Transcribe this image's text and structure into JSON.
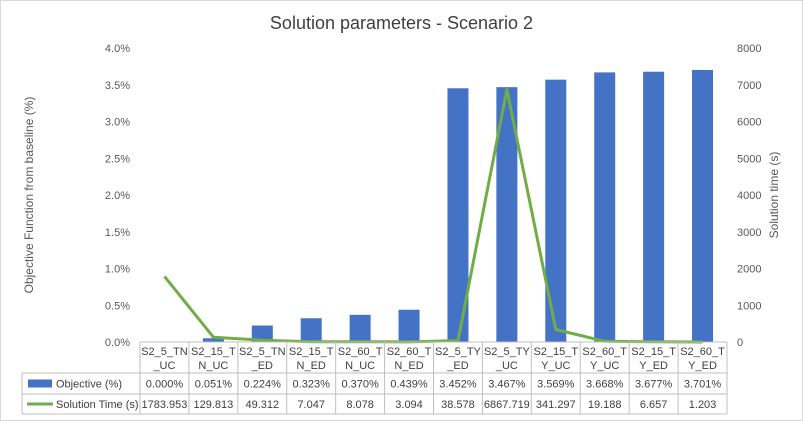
{
  "chart_data": {
    "type": "bar",
    "title": "Solution parameters - Scenario 2",
    "categories": [
      "S2_5_TN_UC",
      "S2_15_TN_UC",
      "S2_5_TN_ED",
      "S2_15_TN_ED",
      "S2_60_TN_UC",
      "S2_60_TN_ED",
      "S2_5_TY_ED",
      "S2_5_TY_UC",
      "S2_15_TY_UC",
      "S2_60_TY_UC",
      "S2_15_TY_ED",
      "S2_60_TY_ED"
    ],
    "category_lines": [
      [
        "S2_5_TN",
        "_UC"
      ],
      [
        "S2_15_T",
        "N_UC"
      ],
      [
        "S2_5_TN",
        "_ED"
      ],
      [
        "S2_15_T",
        "N_ED"
      ],
      [
        "S2_60_T",
        "N_UC"
      ],
      [
        "S2_60_T",
        "N_ED"
      ],
      [
        "S2_5_TY",
        "_ED"
      ],
      [
        "S2_5_TY",
        "_UC"
      ],
      [
        "S2_15_T",
        "Y_UC"
      ],
      [
        "S2_60_T",
        "Y_UC"
      ],
      [
        "S2_15_T",
        "Y_ED"
      ],
      [
        "S2_60_T",
        "Y_ED"
      ]
    ],
    "series": [
      {
        "name": "Objective (%)",
        "type": "bar",
        "axis": "left",
        "color": "#4472c4",
        "values": [
          0.0,
          0.051,
          0.224,
          0.323,
          0.37,
          0.439,
          3.452,
          3.467,
          3.569,
          3.668,
          3.677,
          3.701
        ],
        "labels": [
          "0.000%",
          "0.051%",
          "0.224%",
          "0.323%",
          "0.370%",
          "0.439%",
          "3.452%",
          "3.467%",
          "3.569%",
          "3.668%",
          "3.677%",
          "3.701%"
        ]
      },
      {
        "name": "Solution Time (s)",
        "type": "line",
        "axis": "right",
        "color": "#70ad47",
        "values": [
          1783.953,
          129.813,
          49.312,
          7.047,
          8.078,
          3.094,
          38.578,
          6867.719,
          341.297,
          19.188,
          6.657,
          1.203
        ],
        "labels": [
          "1783.953",
          "129.813",
          "49.312",
          "7.047",
          "8.078",
          "3.094",
          "38.578",
          "6867.719",
          "341.297",
          "19.188",
          "6.657",
          "1.203"
        ]
      }
    ],
    "ylabel": "Objective Function from baseline (%)",
    "y2label": "Solution time (s)",
    "ylim": [
      0,
      4.0
    ],
    "y2lim": [
      0,
      8000
    ],
    "yticks": [
      "0.0%",
      "0.5%",
      "1.0%",
      "1.5%",
      "2.0%",
      "2.5%",
      "3.0%",
      "3.5%",
      "4.0%"
    ],
    "y2ticks": [
      "0",
      "1000",
      "2000",
      "3000",
      "4000",
      "5000",
      "6000",
      "7000",
      "8000"
    ],
    "legend": "data-table",
    "grid": false
  }
}
